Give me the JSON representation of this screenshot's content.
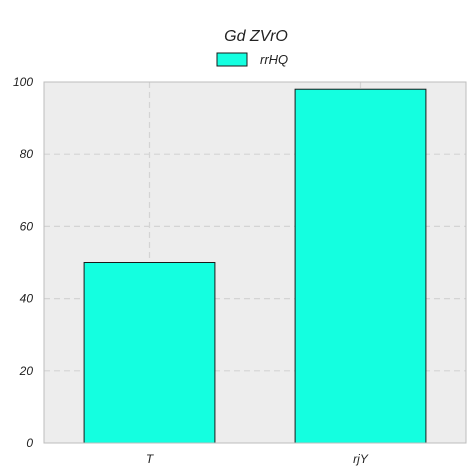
{
  "chart_data": {
    "type": "bar",
    "title": "Gd ZVrO",
    "xlabel": "",
    "ylabel": "",
    "categories": [
      "T",
      "rjY"
    ],
    "series": [
      {
        "name": "rrHQ",
        "values": [
          50,
          98
        ]
      }
    ],
    "ylim": [
      0,
      100
    ],
    "yticks": [
      0,
      20,
      40,
      60,
      80,
      100
    ],
    "grid": true,
    "legend_position": "top-center",
    "colors": {
      "bar_fill": "#14ffe0",
      "bar_stroke": "#1a1a1a",
      "plot_background": "#ededed",
      "plot_border": "#bdbdbd",
      "grid": "#d4d4d4"
    }
  }
}
